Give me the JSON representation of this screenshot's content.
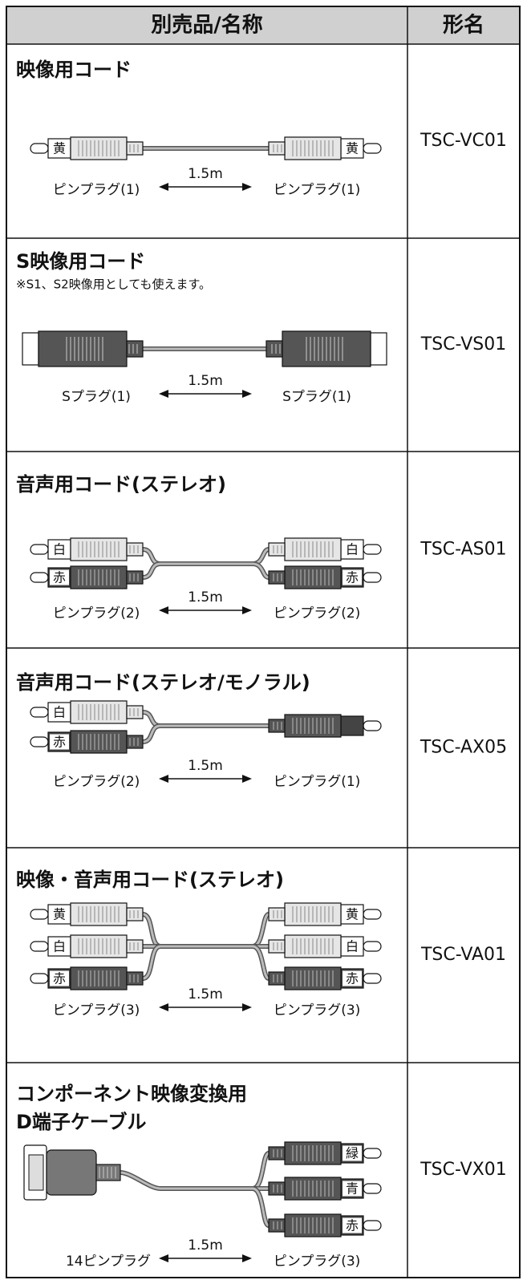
{
  "table": {
    "header": [
      "別売品/名称",
      "形名"
    ],
    "rows": [
      {
        "name": [
          "映像用コード"
        ],
        "model": "TSC-VC01",
        "left_plug": "ピンプラグ(1)",
        "length": "1.5m",
        "right_plug": "ピンプラグ(1)",
        "left_colors": [
          "黄"
        ],
        "right_colors": [
          "黄"
        ]
      },
      {
        "name": [
          "S映像用コード"
        ],
        "note": "※S1、S2映像用としても使えます。",
        "model": "TSC-VS01",
        "left_plug": "Sプラグ(1)",
        "length": "1.5m",
        "right_plug": "Sプラグ(1)"
      },
      {
        "name": [
          "音声用コード(ステレオ)"
        ],
        "model": "TSC-AS01",
        "left_plug": "ピンプラグ(2)",
        "length": "1.5m",
        "right_plug": "ピンプラグ(2)",
        "left_colors": [
          "白",
          "赤"
        ],
        "right_colors": [
          "白",
          "赤"
        ]
      },
      {
        "name": [
          "音声用コード(ステレオ/モノラル)"
        ],
        "model": "TSC-AX05",
        "left_plug": "ピンプラグ(2)",
        "length": "1.5m",
        "right_plug": "ピンプラグ(1)",
        "left_colors": [
          "白",
          "赤"
        ],
        "right_colors": [
          null
        ]
      },
      {
        "name": [
          "映像・音声用コード(ステレオ)"
        ],
        "model": "TSC-VA01",
        "left_plug": "ピンプラグ(3)",
        "length": "1.5m",
        "right_plug": "ピンプラグ(3)",
        "left_colors": [
          "黄",
          "白",
          "赤"
        ],
        "right_colors": [
          "黄",
          "白",
          "赤"
        ]
      },
      {
        "name": [
          "コンポーネント映像変換用",
          "D端子ケーブル"
        ],
        "model": "TSC-VX01",
        "left_plug": "14ピンプラグ",
        "length": "1.5m",
        "right_plug": "ピンプラグ(3)",
        "right_colors": [
          "緑",
          "青",
          "赤"
        ]
      }
    ]
  }
}
